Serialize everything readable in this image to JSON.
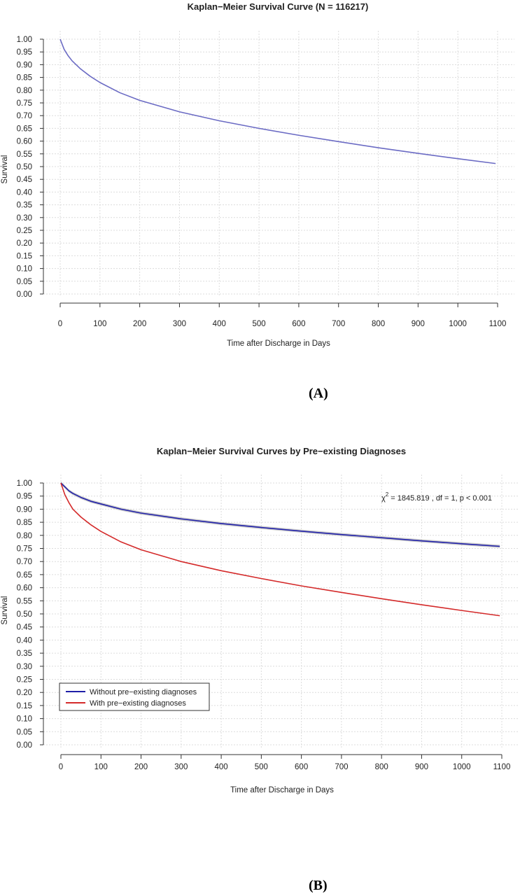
{
  "chart_data": [
    {
      "type": "line",
      "title": "Kaplan−Meier Survival Curve (N = 116217)",
      "xlabel": "Time after Discharge in Days",
      "ylabel": "Survival",
      "xlim": [
        0,
        1100
      ],
      "ylim": [
        0,
        1
      ],
      "xticks": [
        "0",
        "100",
        "200",
        "300",
        "400",
        "500",
        "600",
        "700",
        "800",
        "900",
        "1000",
        "1100"
      ],
      "yticks": [
        "0.00",
        "0.05",
        "0.10",
        "0.15",
        "0.20",
        "0.25",
        "0.30",
        "0.35",
        "0.40",
        "0.45",
        "0.50",
        "0.55",
        "0.60",
        "0.65",
        "0.70",
        "0.75",
        "0.80",
        "0.85",
        "0.90",
        "0.95",
        "1.00"
      ],
      "grid": true,
      "series": [
        {
          "color": "#6b6bc4",
          "x": [
            0,
            10,
            20,
            30,
            50,
            75,
            100,
            150,
            200,
            300,
            400,
            500,
            600,
            700,
            800,
            900,
            1000,
            1095
          ],
          "y": [
            1.0,
            0.96,
            0.935,
            0.915,
            0.885,
            0.855,
            0.83,
            0.79,
            0.76,
            0.715,
            0.68,
            0.65,
            0.623,
            0.598,
            0.574,
            0.552,
            0.531,
            0.512
          ]
        }
      ],
      "panel_label": "(A)"
    },
    {
      "type": "line",
      "title": "Kaplan−Meier Survival Curves by Pre−existing Diagnoses",
      "xlabel": "Time after Discharge in Days",
      "ylabel": "Survival",
      "xlim": [
        0,
        1100
      ],
      "ylim": [
        0,
        1
      ],
      "xticks": [
        "0",
        "100",
        "200",
        "300",
        "400",
        "500",
        "600",
        "700",
        "800",
        "900",
        "1000",
        "1100"
      ],
      "yticks": [
        "0.00",
        "0.05",
        "0.10",
        "0.15",
        "0.20",
        "0.25",
        "0.30",
        "0.35",
        "0.40",
        "0.45",
        "0.50",
        "0.55",
        "0.60",
        "0.65",
        "0.70",
        "0.75",
        "0.80",
        "0.85",
        "0.90",
        "0.95",
        "1.00"
      ],
      "grid": true,
      "annotation": {
        "chi": "χ",
        "sup": "2",
        "text": " = 1845.819 , df = 1, p < 0.001"
      },
      "legend_position": "bottom-left",
      "series": [
        {
          "name": "Without pre−existing diagnoses",
          "color": "#1f1fa8",
          "band": 0.006,
          "x": [
            0,
            10,
            20,
            30,
            50,
            75,
            100,
            150,
            200,
            300,
            400,
            500,
            600,
            700,
            800,
            900,
            1000,
            1095
          ],
          "y": [
            1.0,
            0.985,
            0.97,
            0.96,
            0.945,
            0.93,
            0.92,
            0.9,
            0.885,
            0.863,
            0.845,
            0.83,
            0.816,
            0.803,
            0.791,
            0.779,
            0.768,
            0.758
          ]
        },
        {
          "name": "With pre−existing diagnoses",
          "color": "#d42a2a",
          "x": [
            0,
            10,
            20,
            30,
            50,
            75,
            100,
            150,
            200,
            300,
            400,
            500,
            600,
            700,
            800,
            900,
            1000,
            1095
          ],
          "y": [
            1.0,
            0.955,
            0.925,
            0.9,
            0.87,
            0.84,
            0.815,
            0.775,
            0.745,
            0.7,
            0.665,
            0.635,
            0.607,
            0.582,
            0.558,
            0.535,
            0.513,
            0.493
          ]
        }
      ],
      "panel_label": "(B)"
    }
  ]
}
